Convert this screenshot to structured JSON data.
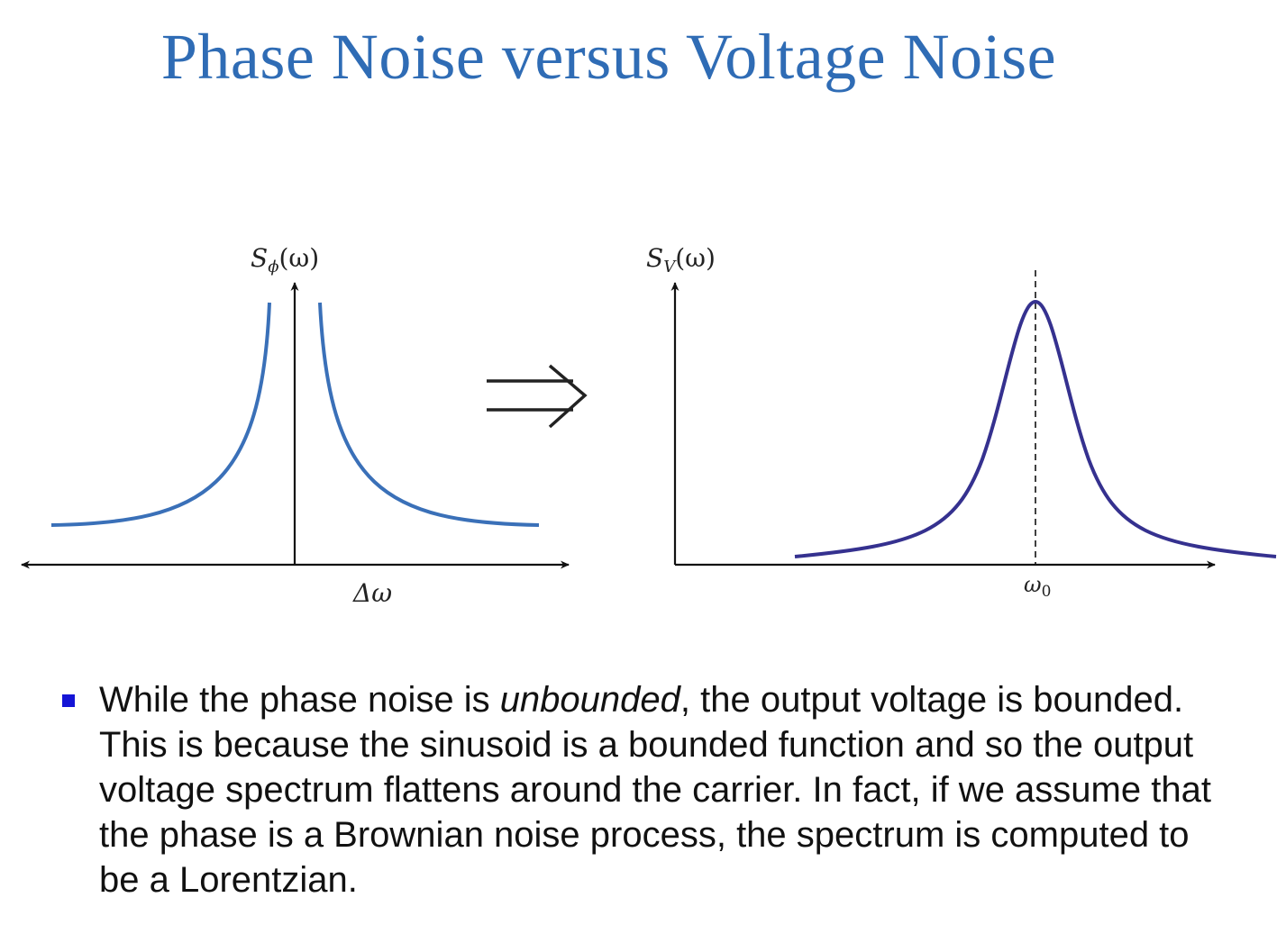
{
  "slide": {
    "title": "Phase Noise versus Voltage Noise"
  },
  "diagram": {
    "left_panel": {
      "y_label_main": "S",
      "y_label_sub": "ϕ",
      "y_label_tail": "(ω)",
      "x_label": "Δω",
      "curve_color": "#3a70b8"
    },
    "arrow_symbol": "⇒",
    "right_panel": {
      "y_label_main": "S",
      "y_label_sub": "V",
      "y_label_tail": "(ω)",
      "x_label_main": "ω",
      "x_label_sub": "0",
      "curve_color": "#35318f"
    }
  },
  "bullet": {
    "marker_color": "#1414d6",
    "text_before": "While the phase noise is ",
    "text_emphasis": "unbounded",
    "text_after": ", the output voltage is bounded. This is because the sinusoid is a bounded function and so the output voltage spectrum flattens around the carrier. In fact, if we assume that the phase is a Brownian noise process, the spectrum is computed to be a Lorentzian."
  }
}
